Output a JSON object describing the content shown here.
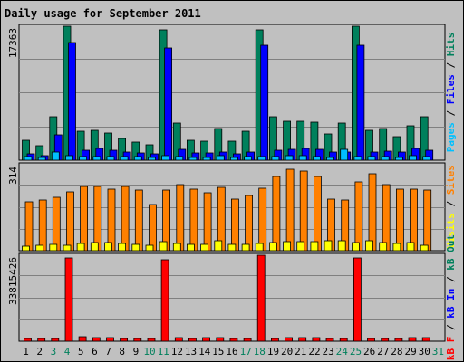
{
  "chart_data": {
    "type": "bar",
    "title": "Daily usage for September 2011",
    "categories": [
      "1",
      "2",
      "3",
      "4",
      "5",
      "6",
      "7",
      "8",
      "9",
      "10",
      "11",
      "12",
      "13",
      "14",
      "15",
      "16",
      "17",
      "18",
      "19",
      "20",
      "21",
      "22",
      "23",
      "24",
      "25",
      "26",
      "27",
      "28",
      "29",
      "30",
      "31"
    ],
    "weekend_days": [
      "3",
      "4",
      "10",
      "11",
      "17",
      "18",
      "24",
      "25",
      "31"
    ],
    "colors": {
      "hits": "#00805c",
      "files": "#0000ff",
      "pages": "#00c0ff",
      "visits": "#ffff00",
      "sites": "#ff8000",
      "kb_in": "#0000ff",
      "kb_out": "#00805c",
      "kb_f": "#ff0000",
      "weekday_label": "#000000",
      "weekend_label": "#00805c",
      "title": "#0000ff",
      "grid": "#808080",
      "background": "#c0c0c0"
    },
    "panels": [
      {
        "id": "usage",
        "max_label": "17363",
        "ymax": 17363,
        "axis_title_parts": [
          {
            "text": "Pages",
            "color": "#00c0ff"
          },
          {
            "text": " / ",
            "color": "#000000"
          },
          {
            "text": "Files",
            "color": "#0000ff"
          },
          {
            "text": " / ",
            "color": "#000000"
          },
          {
            "text": "Hits",
            "color": "#00805c"
          }
        ],
        "series": [
          {
            "name": "Hits",
            "color": "#00805c",
            "values": [
              2600,
              1900,
              5600,
              17363,
              3700,
              3900,
              3500,
              2800,
              2300,
              2000,
              16900,
              4800,
              2600,
              2500,
              4100,
              2500,
              3800,
              16900,
              5600,
              5000,
              5100,
              4900,
              3400,
              4800,
              17363,
              3900,
              4100,
              3100,
              4500,
              5600,
              0
            ]
          },
          {
            "name": "Files",
            "color": "#0000ff",
            "values": [
              800,
              600,
              3300,
              15300,
              1300,
              1500,
              1300,
              1000,
              900,
              800,
              14500,
              1400,
              900,
              900,
              1000,
              800,
              1100,
              14900,
              1300,
              1400,
              1500,
              1400,
              1000,
              1100,
              14900,
              1100,
              1200,
              1000,
              1500,
              1300,
              0
            ]
          },
          {
            "name": "Pages",
            "color": "#00c0ff",
            "values": [
              500,
              400,
              1000,
              600,
              500,
              500,
              500,
              450,
              450,
              350,
              550,
              500,
              400,
              400,
              600,
              400,
              450,
              500,
              500,
              550,
              550,
              500,
              400,
              1400,
              500,
              500,
              500,
              400,
              550,
              500,
              0
            ]
          }
        ]
      },
      {
        "id": "sites",
        "max_label": "314",
        "ymax": 314,
        "axis_title_parts": [
          {
            "text": "Visits",
            "color": "#ffff00"
          },
          {
            "text": " / ",
            "color": "#000000"
          },
          {
            "text": "Sites",
            "color": "#ff8000"
          }
        ],
        "series": [
          {
            "name": "Sites",
            "color": "#ff8000",
            "values": [
              180,
              185,
              195,
              215,
              235,
              235,
              225,
              235,
              220,
              170,
              220,
              240,
              225,
              210,
              230,
              190,
              200,
              228,
              270,
              298,
              290,
              270,
              190,
              185,
              250,
              280,
              240,
              225,
              225,
              220,
              0
            ]
          },
          {
            "name": "Visits",
            "color": "#ffff00",
            "values": [
              15,
              20,
              22,
              20,
              28,
              30,
              30,
              28,
              24,
              20,
              32,
              28,
              24,
              24,
              38,
              22,
              24,
              28,
              30,
              34,
              34,
              34,
              38,
              38,
              30,
              35,
              30,
              28,
              30,
              20,
              0
            ]
          }
        ]
      },
      {
        "id": "kbytes",
        "max_label": "33815426",
        "ymax": 33815426,
        "axis_title_parts": [
          {
            "text": "kB F",
            "color": "#ff0000"
          },
          {
            "text": " / ",
            "color": "#000000"
          },
          {
            "text": "kB In",
            "color": "#0000ff"
          },
          {
            "text": " / ",
            "color": "#000000"
          },
          {
            "text": "kB Out",
            "color": "#00805c"
          }
        ],
        "series": [
          {
            "name": "kB F",
            "color": "#ff0000",
            "values": [
              1000000,
              900000,
              1000000,
              32800000,
              1800000,
              1500000,
              1300000,
              1200000,
              1000000,
              1000000,
              32100000,
              1400000,
              1200000,
              1300000,
              1300000,
              1000000,
              1000000,
              33815426,
              1200000,
              1400000,
              1600000,
              1500000,
              1000000,
              1000000,
              32800000,
              1200000,
              1200000,
              1000000,
              1400000,
              1400000,
              0
            ]
          }
        ]
      }
    ]
  }
}
